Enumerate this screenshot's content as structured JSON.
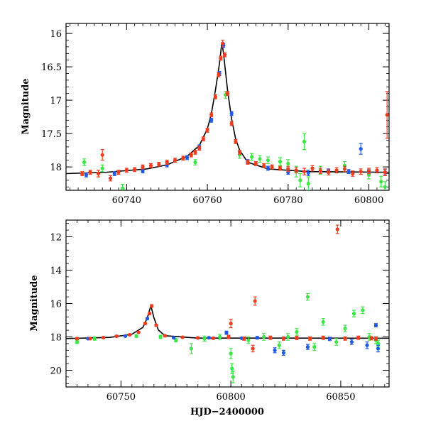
{
  "chart_data": [
    {
      "type": "scatter",
      "title": "",
      "xlabel": "",
      "ylabel": "Magnitude",
      "xlim": [
        60725,
        60805
      ],
      "ylim": [
        18.35,
        15.85
      ],
      "y_inverted": true,
      "grid": false,
      "x_ticks": [
        "60740",
        "60760",
        "60780",
        "60800"
      ],
      "x_tick_values": [
        60740,
        60760,
        60780,
        60800
      ],
      "y_ticks": [
        "16",
        "16.5",
        "17",
        "17.5",
        "18"
      ],
      "y_tick_values": [
        16,
        16.5,
        17,
        17.5,
        18
      ],
      "model_curve": {
        "color": "#000000",
        "x": [
          60725,
          60735,
          60745,
          60750,
          60755,
          60758,
          60760,
          60761,
          60762,
          60763,
          60763.6,
          60764,
          60765,
          60766,
          60767,
          60768,
          60770,
          60775,
          60785,
          60805
        ],
        "y": [
          18.1,
          18.08,
          18.03,
          17.97,
          17.84,
          17.68,
          17.43,
          17.2,
          16.85,
          16.45,
          16.13,
          16.3,
          16.85,
          17.28,
          17.58,
          17.75,
          17.93,
          18.03,
          18.07,
          18.08
        ]
      },
      "series": [
        {
          "color": "#f03c1e",
          "x": [
            60729,
            60731,
            60733,
            60734,
            60736,
            60738,
            60740,
            60742,
            60744,
            60746,
            60748,
            60750,
            60752,
            60754,
            60756,
            60757,
            60758,
            60759,
            60760,
            60761,
            60762,
            60762.8,
            60763.3,
            60763.8,
            60764.3,
            60765,
            60766,
            60767,
            60768,
            60770,
            60772,
            60774,
            60776,
            60778,
            60780,
            60782,
            60784,
            60786,
            60788,
            60790,
            60792,
            60794,
            60796,
            60798,
            60800,
            60802,
            60804,
            60804.5
          ],
          "y": [
            18.1,
            18.08,
            18.1,
            17.82,
            18.17,
            18.08,
            18.05,
            18.04,
            18.0,
            17.98,
            17.96,
            17.93,
            17.9,
            17.87,
            17.82,
            17.78,
            17.72,
            17.58,
            17.45,
            17.22,
            16.95,
            16.62,
            16.37,
            16.15,
            16.32,
            16.9,
            17.35,
            17.62,
            17.78,
            17.93,
            17.95,
            17.98,
            18.0,
            18.02,
            18.03,
            18.05,
            18.07,
            18.02,
            18.06,
            18.08,
            18.05,
            18.03,
            18.1,
            18.07,
            18.06,
            18.05,
            18.08,
            17.22
          ],
          "err": [
            0.03,
            0.03,
            0.05,
            0.08,
            0.04,
            0.03,
            0.03,
            0.03,
            0.03,
            0.03,
            0.03,
            0.03,
            0.03,
            0.03,
            0.03,
            0.03,
            0.03,
            0.03,
            0.03,
            0.03,
            0.03,
            0.03,
            0.03,
            0.05,
            0.03,
            0.03,
            0.03,
            0.03,
            0.03,
            0.03,
            0.03,
            0.03,
            0.03,
            0.03,
            0.04,
            0.04,
            0.05,
            0.04,
            0.04,
            0.04,
            0.04,
            0.04,
            0.04,
            0.04,
            0.04,
            0.04,
            0.05,
            0.35
          ]
        },
        {
          "color": "#1e5ae6",
          "x": [
            60730,
            60737,
            60744,
            60750,
            60755,
            60758,
            60761,
            60763,
            60764,
            60766,
            60770,
            60775,
            60780,
            60785,
            60790,
            60795,
            60798,
            60800,
            60804
          ],
          "y": [
            18.12,
            18.1,
            18.06,
            17.97,
            17.86,
            17.7,
            17.3,
            16.6,
            16.18,
            17.2,
            17.92,
            18.02,
            18.08,
            18.09,
            18.06,
            18.07,
            17.73,
            18.07,
            18.08
          ],
          "err": [
            0.03,
            0.03,
            0.03,
            0.03,
            0.03,
            0.03,
            0.03,
            0.03,
            0.03,
            0.03,
            0.03,
            0.03,
            0.03,
            0.04,
            0.03,
            0.03,
            0.08,
            0.03,
            0.04
          ]
        },
        {
          "color": "#3ce646",
          "x": [
            60729.5,
            60734,
            60739,
            60757,
            60764.5,
            60768,
            60771,
            60773,
            60775,
            60778,
            60780,
            60782,
            60783,
            60784,
            60785,
            60788,
            60794,
            60800,
            60803,
            60804
          ],
          "y": [
            17.93,
            18.02,
            18.32,
            17.93,
            16.92,
            17.82,
            17.85,
            17.88,
            17.9,
            17.92,
            17.95,
            18.07,
            18.2,
            17.62,
            18.25,
            18.05,
            17.98,
            18.12,
            18.22,
            18.3
          ],
          "err": [
            0.05,
            0.05,
            0.06,
            0.04,
            0.05,
            0.05,
            0.05,
            0.05,
            0.05,
            0.06,
            0.06,
            0.08,
            0.1,
            0.12,
            0.1,
            0.06,
            0.06,
            0.06,
            0.08,
            0.08
          ]
        }
      ]
    },
    {
      "type": "scatter",
      "title": "",
      "xlabel": "HJD−2400000",
      "ylabel": "Magnitude",
      "xlim": [
        60725,
        60872
      ],
      "ylim": [
        21,
        11
      ],
      "y_inverted": true,
      "grid": false,
      "x_ticks": [
        "60750",
        "60800",
        "60850"
      ],
      "x_tick_values": [
        60750,
        60800,
        60850
      ],
      "y_ticks": [
        "12",
        "14",
        "16",
        "18",
        "20"
      ],
      "y_tick_values": [
        12,
        14,
        16,
        18,
        20
      ],
      "model_curve": {
        "color": "#000000",
        "x": [
          60725,
          60745,
          60755,
          60760,
          60762,
          60763.6,
          60765,
          60767,
          60770,
          60785,
          60872
        ],
        "y": [
          18.1,
          18.03,
          17.84,
          17.43,
          16.85,
          16.13,
          16.85,
          17.58,
          17.93,
          18.07,
          18.08
        ]
      },
      "series": [
        {
          "color": "#f03c1e",
          "x": [
            60730,
            60736,
            60742,
            60748,
            60754,
            60758,
            60761,
            60763,
            60764,
            60766,
            60770,
            60778,
            60785,
            60792,
            60799,
            60800,
            60806,
            60810,
            60811,
            60818,
            60824,
            60830,
            60836,
            60842,
            60848.5,
            60852,
            60858,
            60864,
            60866
          ],
          "y": [
            18.1,
            18.1,
            18.04,
            17.96,
            17.87,
            17.72,
            17.2,
            16.6,
            16.15,
            17.3,
            17.93,
            18.02,
            18.06,
            18.08,
            18.0,
            17.2,
            18.1,
            18.7,
            15.85,
            18.05,
            18.1,
            18.06,
            18.1,
            18.05,
            11.55,
            18.1,
            18.05,
            18.08,
            18.1
          ],
          "err": [
            0.05,
            0.05,
            0.05,
            0.05,
            0.05,
            0.05,
            0.05,
            0.05,
            0.08,
            0.05,
            0.05,
            0.05,
            0.05,
            0.05,
            0.1,
            0.25,
            0.1,
            0.2,
            0.25,
            0.1,
            0.1,
            0.1,
            0.1,
            0.1,
            0.25,
            0.1,
            0.1,
            0.1,
            0.1
          ]
        },
        {
          "color": "#1e5ae6",
          "x": [
            60735,
            60752,
            60762,
            60774,
            60790,
            60798,
            60805,
            60812,
            60820,
            60824,
            60835,
            60845,
            60855,
            60862,
            60866,
            60867
          ],
          "y": [
            18.1,
            17.95,
            16.9,
            18.05,
            18.05,
            17.75,
            18.08,
            18.05,
            18.8,
            18.95,
            18.6,
            18.12,
            18.3,
            18.5,
            17.3,
            18.7
          ],
          "err": [
            0.05,
            0.05,
            0.05,
            0.05,
            0.05,
            0.1,
            0.05,
            0.08,
            0.15,
            0.15,
            0.15,
            0.1,
            0.15,
            0.2,
            0.1,
            0.2
          ],
          "name": ""
        },
        {
          "color": "#3ce646",
          "x": [
            60730,
            60738,
            60757,
            60768,
            60775,
            60782,
            60788,
            60795,
            60800,
            60800.5,
            60801,
            60808,
            60815,
            60822,
            60826,
            60830,
            60835,
            60838,
            60842,
            60848,
            60852,
            60856,
            60860,
            60863,
            60866,
            60867
          ],
          "y": [
            18.3,
            18.1,
            17.95,
            18.0,
            18.2,
            18.7,
            18.1,
            18.0,
            19.0,
            19.9,
            20.4,
            18.2,
            18.0,
            18.5,
            18.0,
            17.7,
            15.6,
            18.6,
            17.1,
            18.3,
            17.5,
            16.6,
            16.4,
            18.0,
            18.2,
            18.4
          ],
          "err": [
            0.1,
            0.1,
            0.08,
            0.1,
            0.1,
            0.3,
            0.15,
            0.15,
            0.3,
            0.3,
            0.35,
            0.2,
            0.2,
            0.2,
            0.2,
            0.2,
            0.2,
            0.2,
            0.2,
            0.2,
            0.2,
            0.2,
            0.2,
            0.2,
            0.2,
            0.2
          ]
        }
      ]
    }
  ]
}
